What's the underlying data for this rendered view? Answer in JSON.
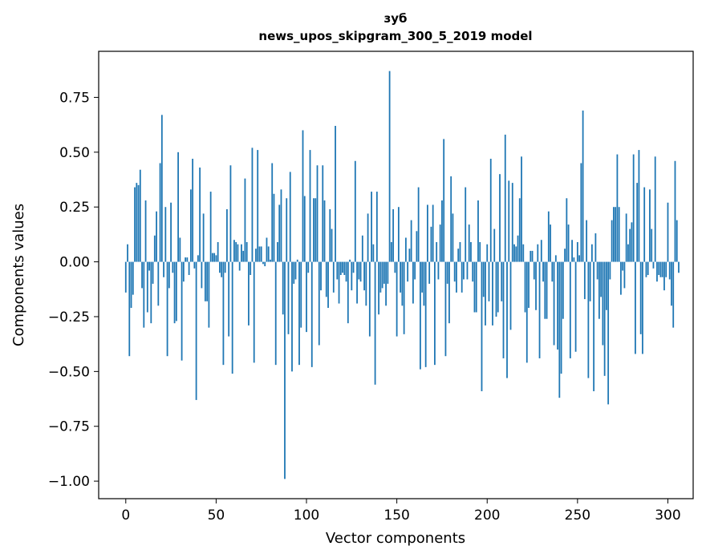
{
  "chart_data": {
    "type": "bar",
    "title": "зуб",
    "subtitle": "news_upos_skipgram_300_5_2019 model",
    "xlabel": "Vector components",
    "ylabel": "Components values",
    "xlim": [
      -15,
      314
    ],
    "ylim": [
      -1.08,
      0.96
    ],
    "xticks": [
      0,
      50,
      100,
      150,
      200,
      250,
      300
    ],
    "xtick_labels": [
      "0",
      "50",
      "100",
      "150",
      "200",
      "250",
      "300"
    ],
    "yticks": [
      -1.0,
      -0.75,
      -0.5,
      -0.25,
      0.0,
      0.25,
      0.5,
      0.75
    ],
    "ytick_labels": [
      "−1.00",
      "−0.75",
      "−0.50",
      "−0.25",
      "0.00",
      "0.25",
      "0.50",
      "0.75"
    ],
    "grid": false,
    "bar_color": "#1f77b4",
    "values": [
      -0.14,
      0.08,
      -0.43,
      -0.21,
      -0.15,
      0.34,
      0.36,
      0.35,
      0.42,
      -0.12,
      -0.3,
      0.28,
      -0.23,
      -0.04,
      -0.28,
      -0.1,
      0.12,
      0.23,
      -0.2,
      0.45,
      0.67,
      -0.07,
      0.25,
      -0.43,
      -0.12,
      0.27,
      -0.05,
      -0.28,
      -0.27,
      0.5,
      0.11,
      -0.45,
      -0.09,
      0.02,
      0.02,
      -0.06,
      0.33,
      0.47,
      -0.03,
      -0.63,
      0.03,
      0.43,
      -0.12,
      0.22,
      -0.18,
      -0.18,
      -0.3,
      0.32,
      0.04,
      0.04,
      0.03,
      0.09,
      -0.05,
      -0.07,
      -0.47,
      -0.05,
      0.24,
      -0.34,
      0.44,
      -0.51,
      0.1,
      0.09,
      0.08,
      -0.04,
      0.08,
      0.05,
      0.38,
      0.09,
      -0.29,
      -0.06,
      0.52,
      -0.46,
      0.06,
      0.51,
      0.07,
      0.07,
      -0.01,
      -0.02,
      0.11,
      0.07,
      0.01,
      0.45,
      0.31,
      -0.47,
      0.09,
      0.26,
      0.33,
      -0.24,
      -0.99,
      0.29,
      -0.33,
      0.41,
      -0.5,
      -0.1,
      -0.08,
      0.01,
      -0.47,
      -0.3,
      0.6,
      0.3,
      -0.32,
      -0.05,
      0.51,
      -0.48,
      0.29,
      0.29,
      0.44,
      -0.38,
      -0.13,
      0.44,
      0.28,
      -0.16,
      -0.21,
      0.24,
      0.15,
      -0.14,
      0.62,
      -0.08,
      -0.19,
      -0.06,
      -0.05,
      -0.06,
      -0.09,
      -0.28,
      0.01,
      -0.13,
      -0.05,
      0.46,
      -0.19,
      -0.08,
      -0.09,
      0.12,
      -0.13,
      -0.2,
      0.22,
      -0.34,
      0.32,
      0.08,
      -0.56,
      0.32,
      -0.24,
      -0.14,
      -0.12,
      -0.1,
      -0.2,
      -0.1,
      0.87,
      0.09,
      0.24,
      -0.05,
      -0.34,
      0.25,
      -0.14,
      -0.2,
      -0.33,
      0.11,
      -0.09,
      0.06,
      0.19,
      -0.19,
      -0.08,
      0.14,
      0.34,
      -0.49,
      -0.14,
      -0.2,
      -0.48,
      0.26,
      -0.1,
      0.16,
      0.26,
      -0.47,
      0.09,
      -0.08,
      0.17,
      0.28,
      0.56,
      -0.43,
      -0.1,
      -0.28,
      0.39,
      0.22,
      -0.09,
      -0.14,
      0.06,
      0.09,
      -0.14,
      -0.08,
      0.34,
      -0.08,
      0.17,
      0.09,
      -0.09,
      -0.23,
      -0.23,
      0.28,
      0.09,
      -0.59,
      -0.16,
      -0.29,
      0.08,
      -0.18,
      0.47,
      -0.29,
      0.15,
      -0.25,
      -0.23,
      0.4,
      -0.18,
      -0.44,
      0.58,
      -0.53,
      0.37,
      -0.31,
      0.36,
      0.08,
      0.07,
      0.12,
      0.29,
      0.48,
      0.08,
      -0.23,
      -0.46,
      -0.21,
      0.05,
      0.05,
      -0.08,
      -0.22,
      0.08,
      -0.44,
      0.1,
      -0.09,
      -0.26,
      -0.26,
      0.23,
      0.17,
      -0.09,
      -0.38,
      0.03,
      -0.4,
      -0.62,
      -0.51,
      -0.26,
      0.06,
      0.29,
      0.17,
      -0.44,
      0.1,
      0.02,
      -0.41,
      0.09,
      0.03,
      0.45,
      0.69,
      -0.17,
      0.19,
      -0.53,
      -0.18,
      0.08,
      -0.59,
      0.13,
      -0.08,
      -0.26,
      -0.16,
      -0.38,
      -0.52,
      -0.22,
      -0.65,
      -0.08,
      0.19,
      0.25,
      0.25,
      0.49,
      0.25,
      -0.15,
      -0.04,
      -0.12,
      0.22,
      0.08,
      0.15,
      0.18,
      0.49,
      -0.42,
      0.36,
      0.51,
      -0.33,
      -0.42,
      0.34,
      -0.07,
      -0.06,
      0.33,
      0.15,
      -0.03,
      0.48,
      -0.09,
      -0.06,
      -0.07,
      -0.07,
      -0.13,
      -0.07,
      0.27,
      -0.08,
      -0.2,
      -0.3,
      0.46,
      0.19,
      -0.05
    ]
  }
}
